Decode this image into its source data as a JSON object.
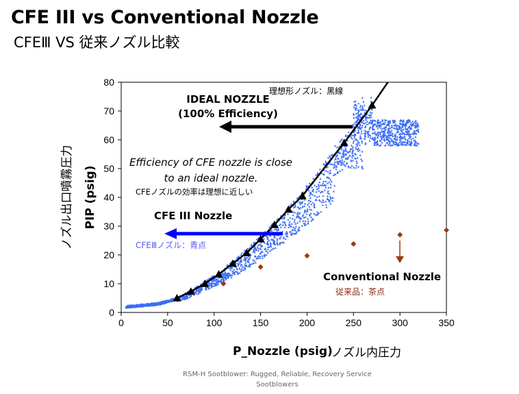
{
  "header": {
    "title": "CFE III vs Conventional Nozzle",
    "subtitle": "CFEⅢ VS 従来ノズル比較"
  },
  "footer": {
    "line1": "RSM-H Sootblower: Rugged, Reliable, Recovery Service",
    "line2": "Sootblowers"
  },
  "colors": {
    "cfe": "#3b6cf5",
    "ideal": "#000000",
    "conventional": "#9b3b0e",
    "blue_arrow": "#0000ff"
  },
  "chart_data": {
    "type": "scatter",
    "xlabel": "P_Nozzle (psig)",
    "xlabel_jp": "ノズル内圧力",
    "ylabel": "PIP (psig)",
    "ylabel_jp": "ノズル出口噴霧圧力",
    "xlim": [
      0,
      350
    ],
    "ylim": [
      0,
      80
    ],
    "xticks": [
      0,
      50,
      100,
      150,
      200,
      250,
      300,
      350
    ],
    "yticks": [
      0,
      10,
      20,
      30,
      40,
      50,
      60,
      70,
      80
    ],
    "grid": false,
    "series": [
      {
        "name": "Ideal nozzle",
        "marker": "triangle",
        "line": true,
        "x": [
          60,
          75,
          90,
          105,
          120,
          135,
          150,
          165,
          180,
          195,
          240,
          270
        ],
        "y": [
          5,
          7.3,
          10,
          13.3,
          17,
          20.7,
          25.5,
          30.5,
          35.8,
          40.5,
          59,
          72
        ]
      },
      {
        "name": "Conventional nozzle",
        "marker": "diamond",
        "x": [
          110,
          150,
          200,
          250,
          300,
          350
        ],
        "y": [
          10,
          15.8,
          19.7,
          23.8,
          27,
          28.6
        ]
      },
      {
        "name": "CFE III nozzle",
        "marker": "small-triangle",
        "description": "dense cloud from x≈5 to 320, slightly below ideal curve; cluster at x 250–320, y 58–68",
        "x_range": [
          5,
          320
        ],
        "count": 2200
      }
    ],
    "annotations": {
      "ideal_title": "IDEAL NOZZLE",
      "ideal_sub": "(100% Efficiency)",
      "ideal_jp": "理想形ノズル：黒線",
      "eff_line1": "Efficiency of CFE nozzle is close",
      "eff_line2": "to an ideal nozzle.",
      "eff_jp": "CFEノズルの効率は理想に近しい",
      "cfe_title": "CFE III Nozzle",
      "cfe_jp": "CFEⅢノズル：青点",
      "conv_title": "Conventional Nozzle",
      "conv_jp": "従来品：茶点"
    }
  }
}
